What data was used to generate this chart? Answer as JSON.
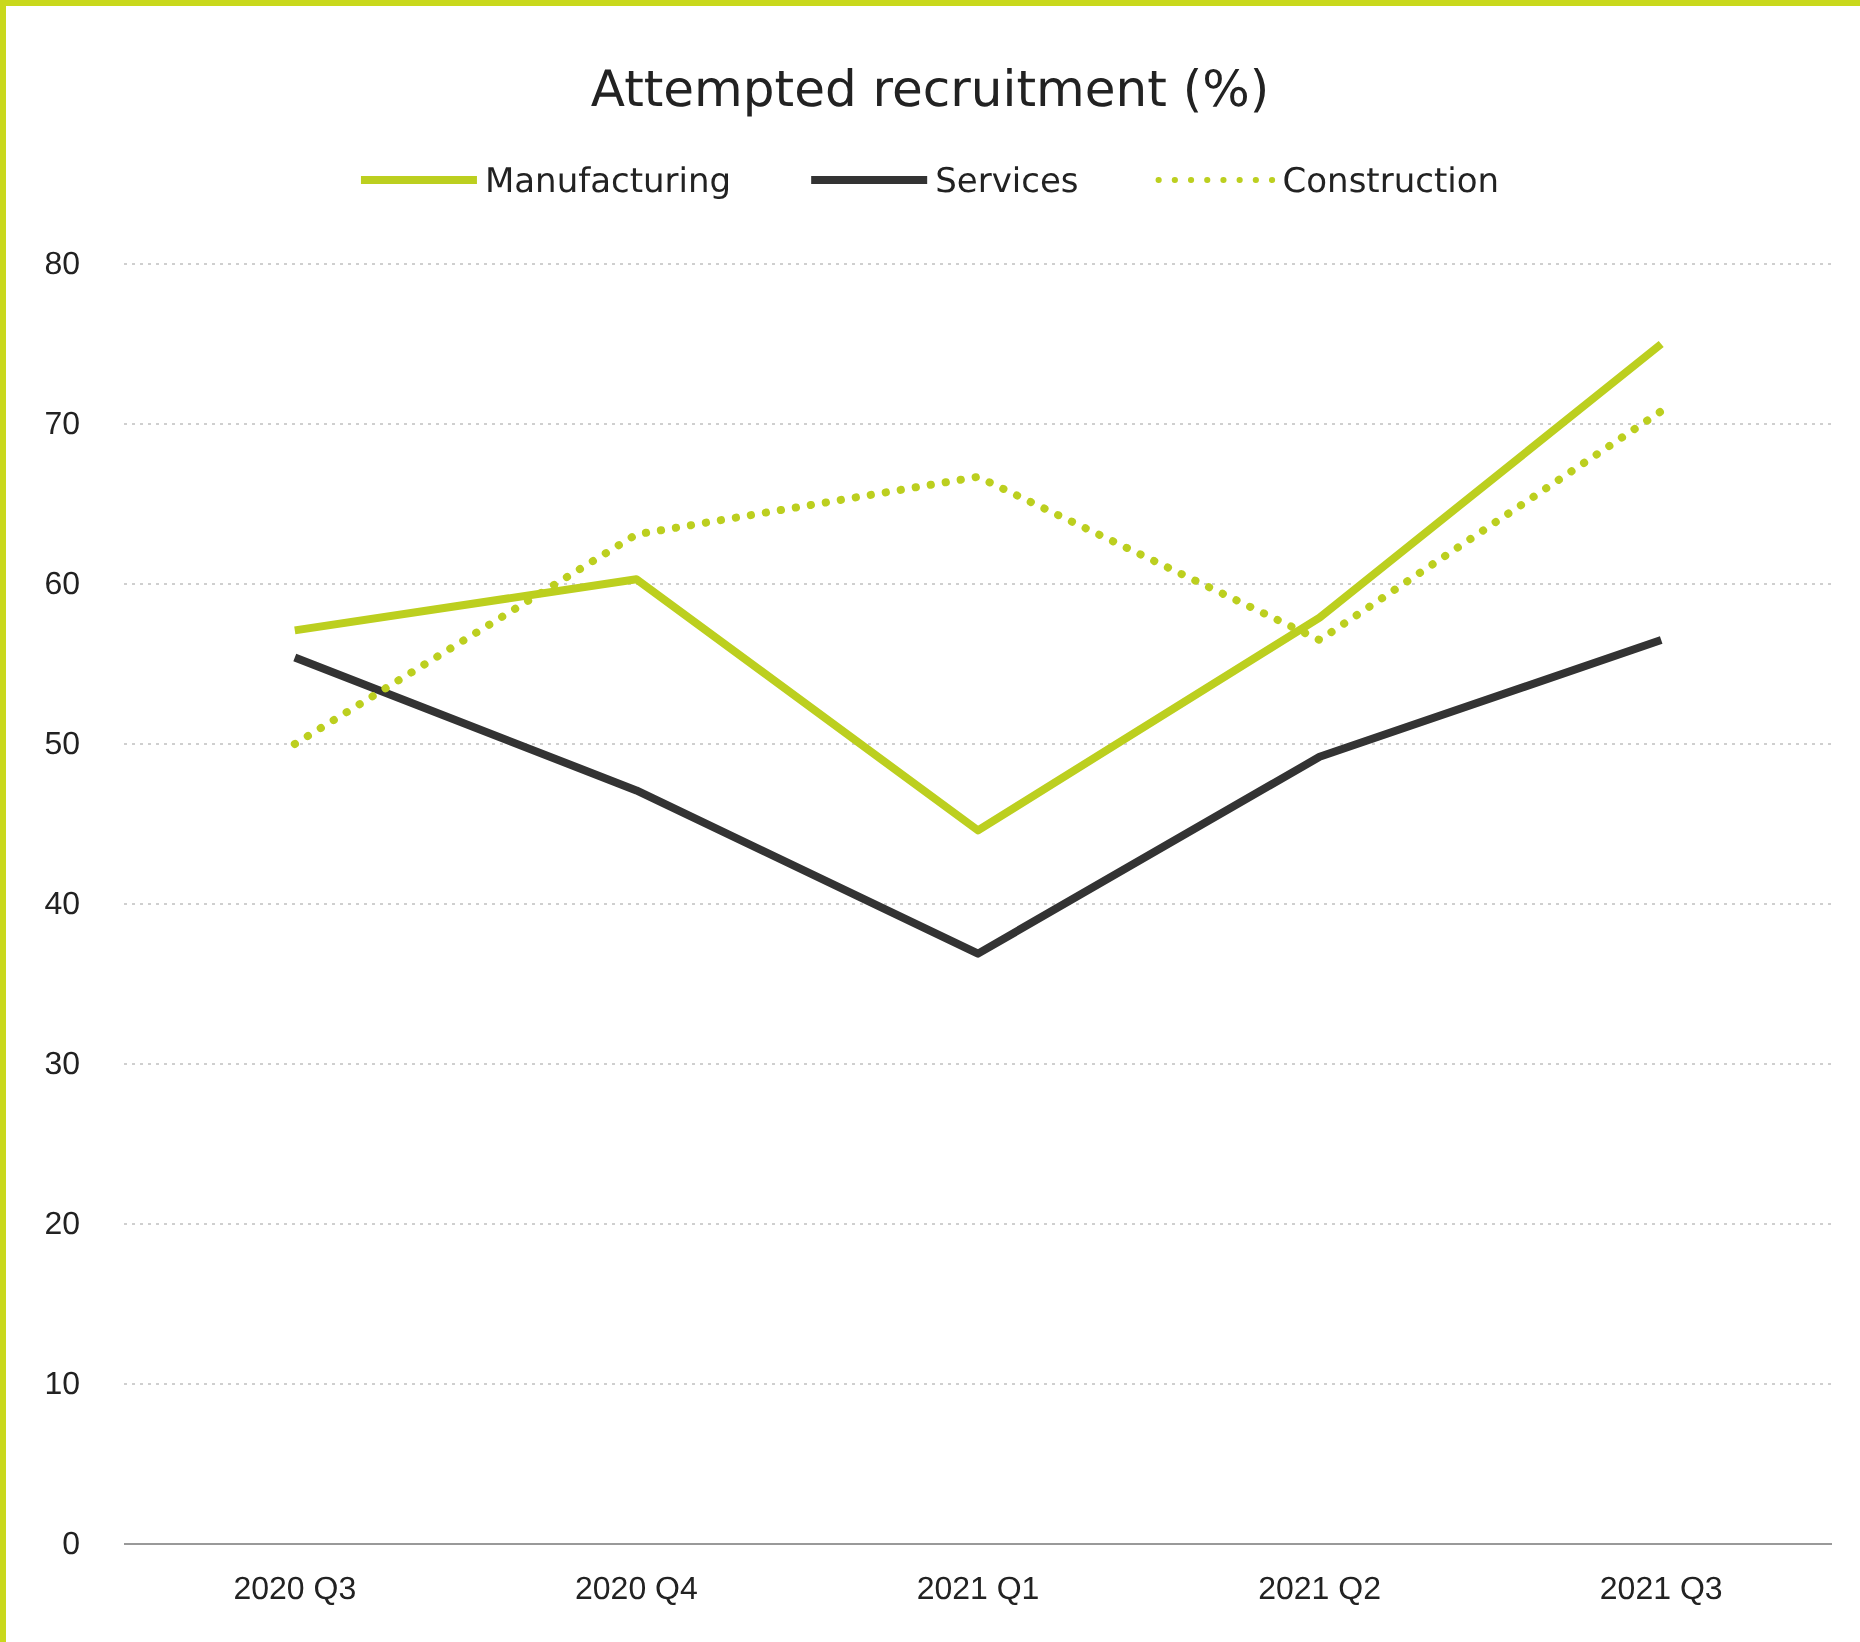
{
  "chart_data": {
    "type": "line",
    "title": "Attempted recruitment (%)",
    "categories": [
      "2020 Q3",
      "2020 Q4",
      "2021 Q1",
      "2021 Q2",
      "2021 Q3"
    ],
    "series": [
      {
        "name": "Manufacturing",
        "color": "#bccf1f",
        "line_style": "solid",
        "values": [
          57.1,
          60.3,
          44.6,
          57.9,
          75.0
        ]
      },
      {
        "name": "Services",
        "color": "#333333",
        "line_style": "solid",
        "values": [
          55.4,
          47.1,
          36.9,
          49.2,
          56.5
        ]
      },
      {
        "name": "Construction",
        "color": "#bccf1f",
        "line_style": "dotted",
        "values": [
          50.0,
          63.1,
          66.7,
          56.5,
          70.8
        ]
      }
    ],
    "ylim": [
      0,
      80
    ],
    "yticks": [
      0,
      10,
      20,
      30,
      40,
      50,
      60,
      70,
      80
    ],
    "grid": "y",
    "legend": "top",
    "marker": "none"
  }
}
